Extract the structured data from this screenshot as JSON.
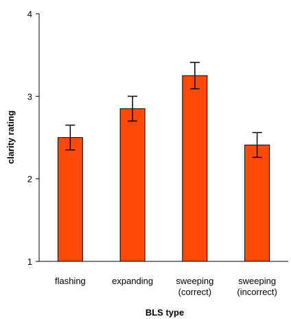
{
  "chart_data": {
    "type": "bar",
    "xlabel": "BLS type",
    "ylabel": "clarity rating",
    "ylim": [
      1,
      4
    ],
    "yticks": [
      1,
      2,
      3,
      4
    ],
    "grid": false,
    "categories": [
      [
        "flashing"
      ],
      [
        "expanding"
      ],
      [
        "sweeping",
        "(correct)"
      ],
      [
        "sweeping",
        "(incorrect)"
      ]
    ],
    "values": [
      2.5,
      2.85,
      3.25,
      2.41
    ],
    "error": [
      0.15,
      0.15,
      0.16,
      0.15
    ],
    "colors": {
      "bar_fill": "#ff4a0a",
      "bar_stroke": "#000000"
    }
  }
}
